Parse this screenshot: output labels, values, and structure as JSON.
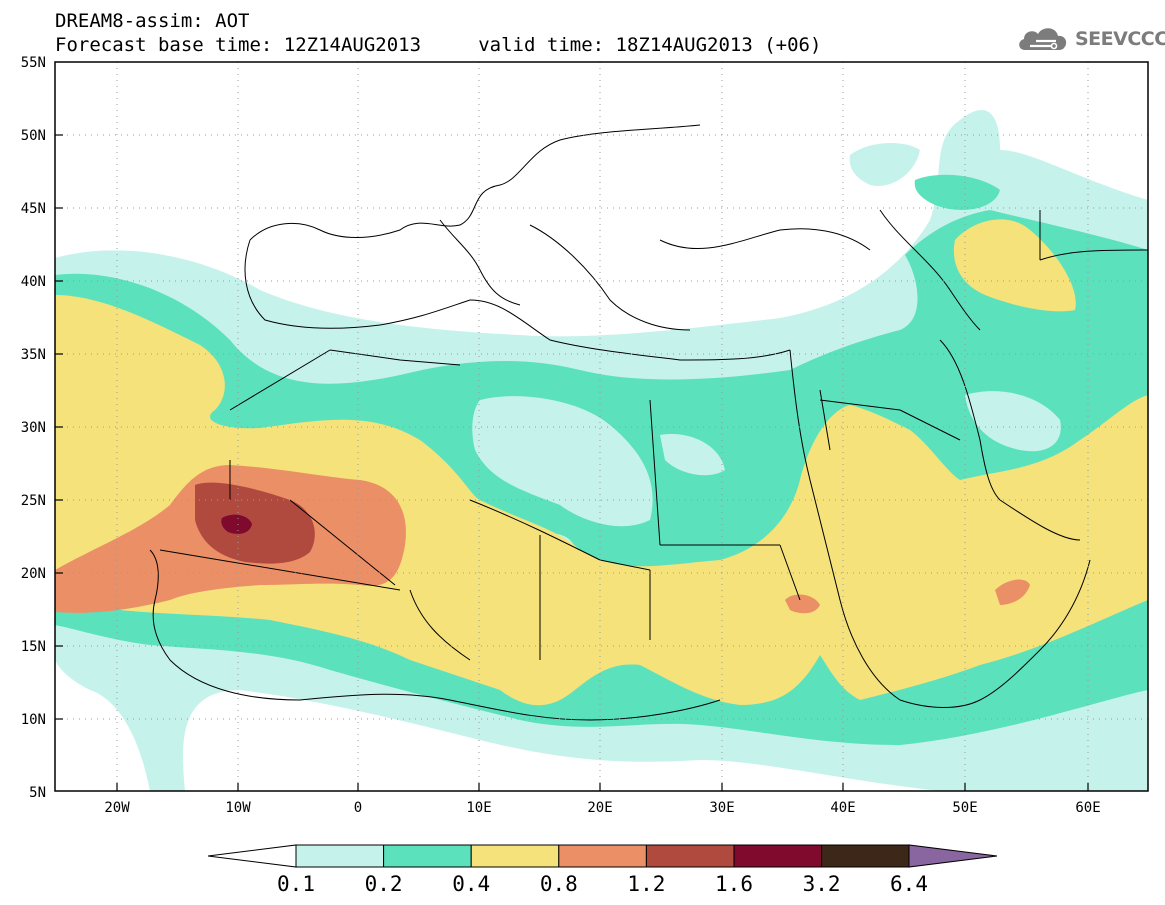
{
  "header": {
    "title_line1": "DREAM8-assim: AOT",
    "title_line2": "Forecast base time: 12Z14AUG2013     valid time: 18Z14AUG2013 (+06)"
  },
  "brand": {
    "name": "SEEVCCC",
    "icon": "cloud-logo-icon"
  },
  "map": {
    "lon_ticks": [
      "20W",
      "10W",
      "0",
      "10E",
      "20E",
      "30E",
      "40E",
      "50E",
      "60E"
    ],
    "lon_values": [
      -20,
      -10,
      0,
      10,
      20,
      30,
      40,
      50,
      60
    ],
    "lat_ticks": [
      "55N",
      "50N",
      "45N",
      "40N",
      "35N",
      "30N",
      "25N",
      "20N",
      "15N",
      "10N",
      "5N"
    ],
    "lat_values": [
      55,
      50,
      45,
      40,
      35,
      30,
      25,
      20,
      15,
      10,
      5
    ],
    "lon_range": [
      -25,
      65
    ],
    "lat_range": [
      5,
      55
    ],
    "grid": "dotted"
  },
  "colorbar": {
    "labels": [
      "0.1",
      "0.2",
      "0.4",
      "0.8",
      "1.2",
      "1.6",
      "3.2",
      "6.4"
    ],
    "colors": [
      "#c6f2ec",
      "#5ce1bd",
      "#f5e27a",
      "#ea8f66",
      "#b14a3e",
      "#80092e",
      "#3c2718"
    ],
    "under_color": "#ffffff",
    "over_color": "#8a66a0"
  }
}
